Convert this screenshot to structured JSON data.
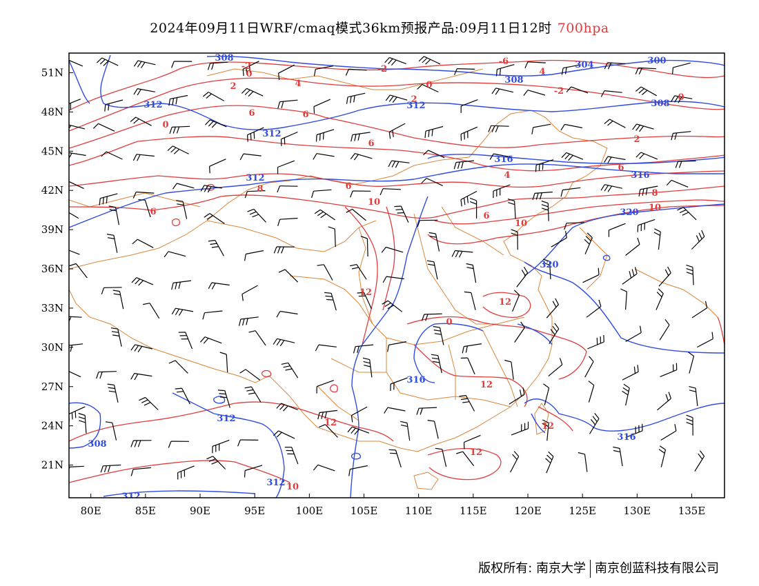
{
  "title": {
    "main": "2024年09月11日WRF/cmaq模式36km预报产品:09月11日12时",
    "level": "700hpa",
    "level_color": "#e03c3c"
  },
  "map": {
    "lon_ticks": [
      "80E",
      "85E",
      "90E",
      "95E",
      "100E",
      "105E",
      "110E",
      "115E",
      "120E",
      "125E",
      "130E",
      "135E"
    ],
    "lat_ticks": [
      "51N",
      "48N",
      "45N",
      "42N",
      "39N",
      "36N",
      "33N",
      "30N",
      "27N",
      "24N",
      "21N"
    ],
    "lon_range": [
      78,
      138
    ],
    "lat_range": [
      18.5,
      52.5
    ],
    "colors": {
      "height_contour": "#2f4be0",
      "temperature_contour": "#e03c3c",
      "boundaries": "#d9863a",
      "wind_barbs": "#000000"
    },
    "height_labels": [
      "308",
      "312",
      "312",
      "312",
      "312",
      "316",
      "316",
      "316",
      "316",
      "320",
      "320",
      "312",
      "304",
      "300",
      "308",
      "308",
      "308",
      "312",
      "312"
    ],
    "temperature_labels": [
      "-2",
      "0",
      "2",
      "4",
      "6",
      "6",
      "6",
      "8",
      "6",
      "6",
      "10",
      "10",
      "12",
      "12",
      "12",
      "12",
      "0",
      "2",
      "0",
      "-2",
      "-6",
      "4",
      "-2",
      "0",
      "2",
      "4",
      "6",
      "8",
      "10",
      "6",
      "12",
      "10",
      "0",
      "12"
    ]
  },
  "footer": {
    "copyright": "版权所有: 南京大学",
    "company": "南京创蓝科技有限公司"
  }
}
